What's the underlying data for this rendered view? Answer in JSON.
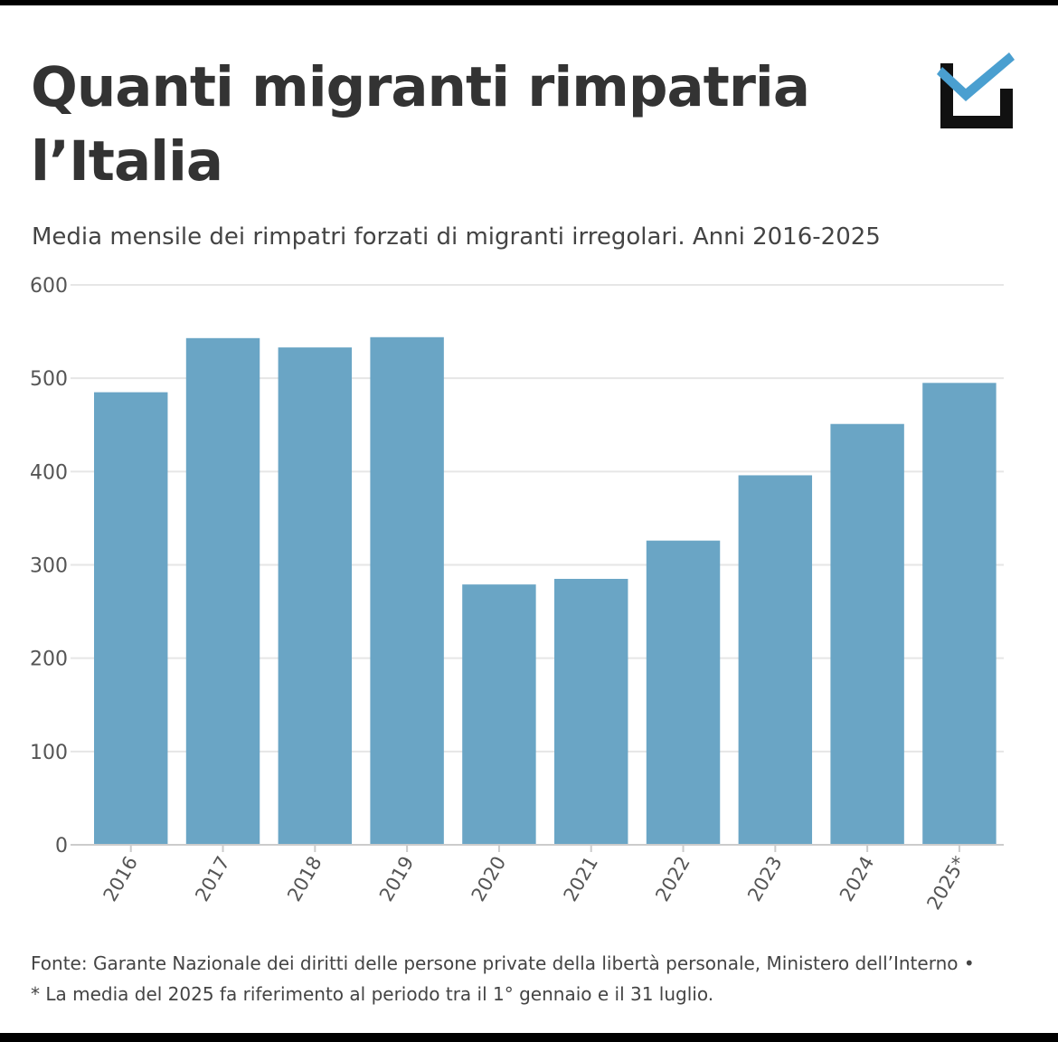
{
  "title_line1": "Quanti migranti rimpatria",
  "title_line2": "l’Italia",
  "subtitle": "Media mensile dei rimpatri forzati di migranti irregolari. Anni 2016-2025",
  "footer": {
    "source": "Fonte: Garante Nazionale dei diritti delle persone private della libertà personale, Ministero dell’Interno •",
    "note": "* La media del 2025 fa riferimento al periodo tra il 1° gennaio e il 31 luglio."
  },
  "logo": {
    "icon": "checkbox-check-icon",
    "box_color": "#111111",
    "check_color": "#4a9fd0"
  },
  "chart_data": {
    "type": "bar",
    "title": "Quanti migranti rimpatria l’Italia",
    "subtitle": "Media mensile dei rimpatri forzati di migranti irregolari. Anni 2016-2025",
    "xlabel": "",
    "ylabel": "",
    "categories": [
      "2016",
      "2017",
      "2018",
      "2019",
      "2020",
      "2021",
      "2022",
      "2023",
      "2024",
      "2025*"
    ],
    "values": [
      485,
      543,
      533,
      544,
      279,
      285,
      326,
      396,
      451,
      495
    ],
    "ylim": [
      0,
      600
    ],
    "yticks": [
      0,
      100,
      200,
      300,
      400,
      500,
      600
    ],
    "grid": true,
    "bar_color": "#6aa5c5",
    "grid_color": "#e6e6e6"
  }
}
